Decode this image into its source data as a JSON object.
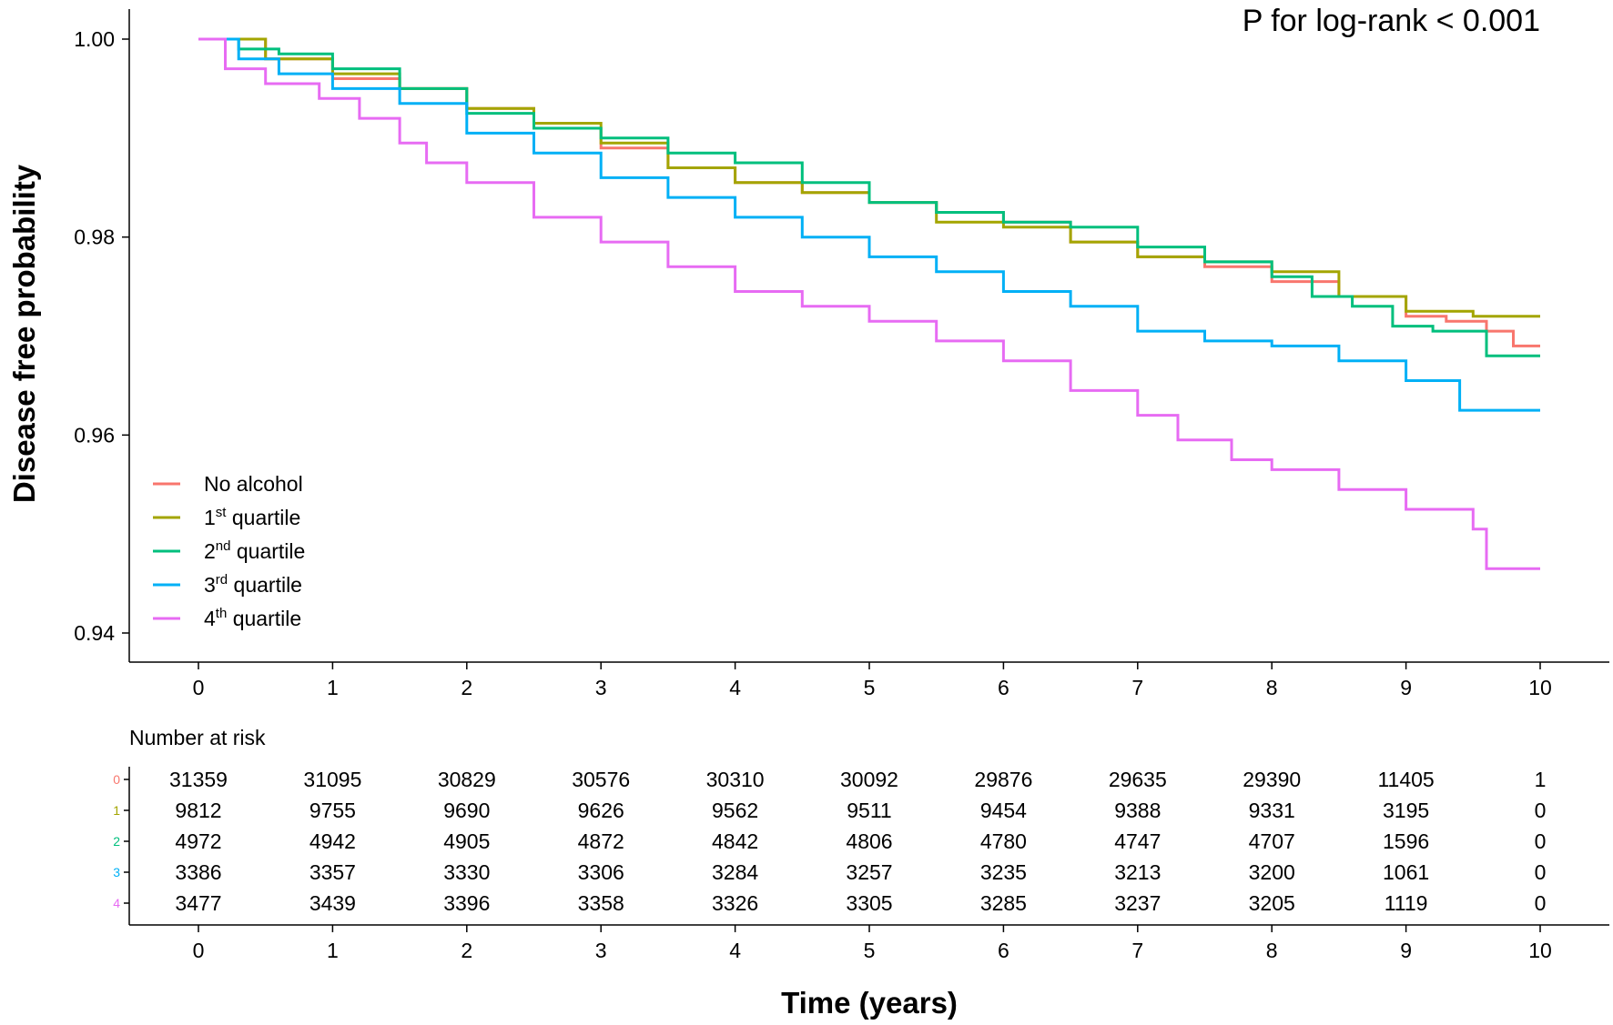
{
  "chart_data": {
    "type": "line",
    "subtype": "kaplan-meier",
    "title": "",
    "annotation": "P for log-rank < 0.001",
    "xlabel": "Time (years)",
    "ylabel": "Disease free probability",
    "xlim": [
      0,
      10
    ],
    "ylim": [
      0.94,
      1.0
    ],
    "x_ticks": [
      "0",
      "1",
      "2",
      "3",
      "4",
      "5",
      "6",
      "7",
      "8",
      "9",
      "10"
    ],
    "y_ticks": [
      "0.94",
      "0.96",
      "0.98",
      "1.00"
    ],
    "legend_position": "bottom-left",
    "series": [
      {
        "name": "No alcohol",
        "sup": "",
        "suffix": "",
        "color": "#F8766D",
        "strata": "0",
        "x": [
          0,
          0.5,
          1,
          1.5,
          2,
          2.5,
          3,
          3.5,
          4,
          4.5,
          5,
          5.5,
          6,
          6.5,
          7,
          7.5,
          8,
          8.5,
          9,
          9.3,
          9.6,
          9.8,
          10
        ],
        "y": [
          1.0,
          0.998,
          0.996,
          0.995,
          0.993,
          0.991,
          0.989,
          0.987,
          0.9855,
          0.9845,
          0.9835,
          0.9825,
          0.9815,
          0.9795,
          0.978,
          0.977,
          0.9755,
          0.974,
          0.972,
          0.9715,
          0.9705,
          0.969,
          0.969
        ]
      },
      {
        "name": "1",
        "sup": "st",
        "suffix": " quartile",
        "color": "#A3A500",
        "strata": "1",
        "x": [
          0,
          0.5,
          1,
          1.5,
          2,
          2.5,
          3,
          3.5,
          4,
          4.5,
          5,
          5.5,
          6,
          6.5,
          7,
          7.5,
          8,
          8.5,
          9,
          9.5,
          10
        ],
        "y": [
          1.0,
          0.998,
          0.9965,
          0.995,
          0.993,
          0.9915,
          0.9895,
          0.987,
          0.9855,
          0.9845,
          0.9835,
          0.9815,
          0.981,
          0.9795,
          0.978,
          0.9775,
          0.9765,
          0.974,
          0.9725,
          0.972,
          0.972
        ]
      },
      {
        "name": "2",
        "sup": "nd",
        "suffix": " quartile",
        "color": "#00BF7D",
        "strata": "2",
        "x": [
          0,
          0.3,
          0.6,
          1,
          1.5,
          2,
          2.5,
          3,
          3.5,
          4,
          4.5,
          5,
          5.5,
          6,
          6.5,
          7,
          7.5,
          8,
          8.3,
          8.6,
          8.9,
          9.2,
          9.6,
          10
        ],
        "y": [
          1.0,
          0.999,
          0.9985,
          0.997,
          0.995,
          0.9925,
          0.991,
          0.99,
          0.9885,
          0.9875,
          0.9855,
          0.9835,
          0.9825,
          0.9815,
          0.981,
          0.979,
          0.9775,
          0.976,
          0.974,
          0.973,
          0.971,
          0.9705,
          0.968,
          0.968
        ]
      },
      {
        "name": "3",
        "sup": "rd",
        "suffix": " quartile",
        "color": "#00B0F6",
        "strata": "3",
        "x": [
          0,
          0.3,
          0.6,
          1,
          1.5,
          2,
          2.5,
          3,
          3.5,
          4,
          4.5,
          5,
          5.5,
          6,
          6.5,
          7,
          7.5,
          8,
          8.5,
          9,
          9.4,
          10
        ],
        "y": [
          1.0,
          0.998,
          0.9965,
          0.995,
          0.9935,
          0.9905,
          0.9885,
          0.986,
          0.984,
          0.982,
          0.98,
          0.978,
          0.9765,
          0.9745,
          0.973,
          0.9705,
          0.9695,
          0.969,
          0.9675,
          0.9655,
          0.9625,
          0.9625
        ]
      },
      {
        "name": "4",
        "sup": "th",
        "suffix": " quartile",
        "color": "#E76BF3",
        "strata": "4",
        "x": [
          0,
          0.2,
          0.5,
          0.9,
          1.2,
          1.5,
          1.7,
          2,
          2.5,
          3,
          3.5,
          4,
          4.5,
          5,
          5.5,
          6,
          6.5,
          7,
          7.3,
          7.7,
          8,
          8.5,
          9,
          9.5,
          9.6,
          10
        ],
        "y": [
          1.0,
          0.997,
          0.9955,
          0.994,
          0.992,
          0.9895,
          0.9875,
          0.9855,
          0.982,
          0.9795,
          0.977,
          0.9745,
          0.973,
          0.9715,
          0.9695,
          0.9675,
          0.9645,
          0.962,
          0.9595,
          0.9575,
          0.9565,
          0.9545,
          0.9525,
          0.9505,
          0.9465,
          0.9465
        ]
      }
    ],
    "risk_table": {
      "title": "Number at risk",
      "rows": [
        {
          "strata": "0",
          "color": "#F8766D",
          "values": [
            "31359",
            "31095",
            "30829",
            "30576",
            "30310",
            "30092",
            "29876",
            "29635",
            "29390",
            "11405",
            "1"
          ]
        },
        {
          "strata": "1",
          "color": "#A3A500",
          "values": [
            "9812",
            "9755",
            "9690",
            "9626",
            "9562",
            "9511",
            "9454",
            "9388",
            "9331",
            "3195",
            "0"
          ]
        },
        {
          "strata": "2",
          "color": "#00BF7D",
          "values": [
            "4972",
            "4942",
            "4905",
            "4872",
            "4842",
            "4806",
            "4780",
            "4747",
            "4707",
            "1596",
            "0"
          ]
        },
        {
          "strata": "3",
          "color": "#00B0F6",
          "values": [
            "3386",
            "3357",
            "3330",
            "3306",
            "3284",
            "3257",
            "3235",
            "3213",
            "3200",
            "1061",
            "0"
          ]
        },
        {
          "strata": "4",
          "color": "#E76BF3",
          "values": [
            "3477",
            "3439",
            "3396",
            "3358",
            "3326",
            "3305",
            "3285",
            "3237",
            "3205",
            "1119",
            "0"
          ]
        }
      ]
    }
  }
}
